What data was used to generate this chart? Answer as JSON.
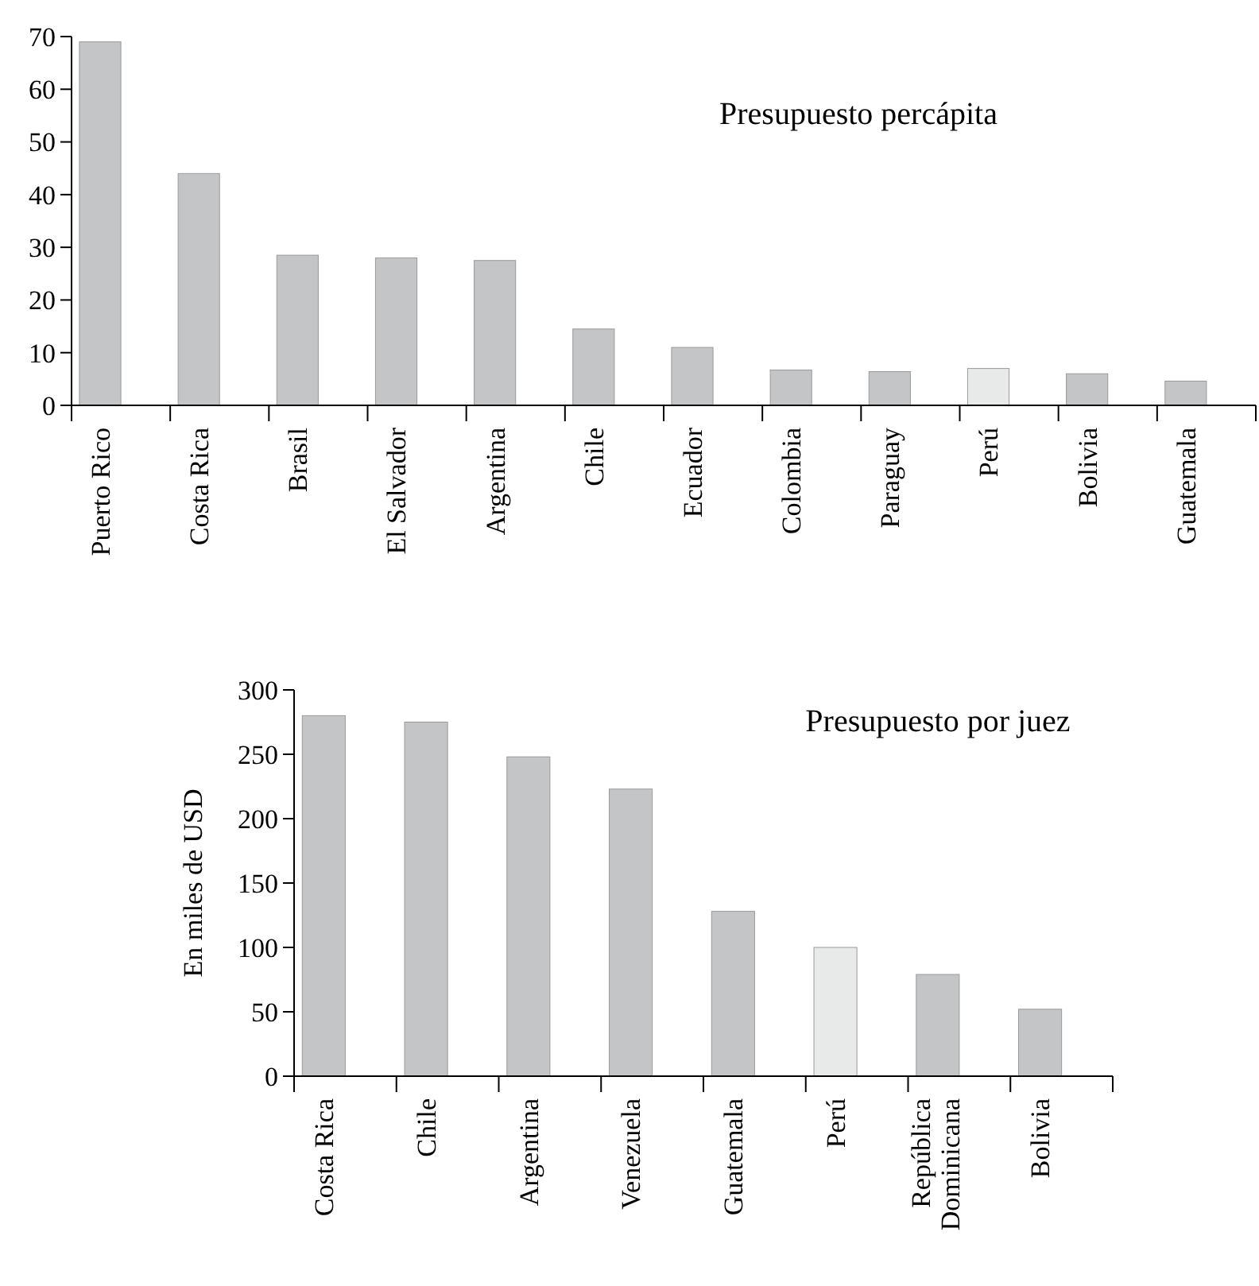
{
  "chart_data": [
    {
      "type": "bar",
      "title": "Presupuesto percápita",
      "categories": [
        "Puerto Rico",
        "Costa Rica",
        "Brasil",
        "El Salvador",
        "Argentina",
        "Chile",
        "Ecuador",
        "Colombia",
        "Paraguay",
        "Perú",
        "Bolivia",
        "Guatemala"
      ],
      "values": [
        69,
        44,
        28.5,
        28,
        27.5,
        14.5,
        11,
        6.7,
        6.4,
        7,
        6,
        4.6
      ],
      "colors": [
        "#c4c5c7",
        "#c4c5c7",
        "#c4c5c7",
        "#c4c5c7",
        "#c4c5c7",
        "#c4c5c7",
        "#c4c5c7",
        "#c4c5c7",
        "#c4c5c7",
        "#e8e9e9",
        "#c4c5c7",
        "#c4c5c7"
      ],
      "ylim": [
        0,
        70
      ],
      "yticks": [
        0,
        10,
        20,
        30,
        40,
        50,
        60,
        70
      ]
    },
    {
      "type": "bar",
      "title": "Presupuesto por juez",
      "ylabel": "En miles de USD",
      "categories": [
        "Costa Rica",
        "Chile",
        "Argentina",
        "Venezuela",
        "Guatemala",
        "Perú",
        "República Dominicana",
        "Bolivia"
      ],
      "values": [
        280,
        275,
        248,
        223,
        128,
        100,
        79,
        52
      ],
      "colors": [
        "#c4c5c7",
        "#c4c5c7",
        "#c4c5c7",
        "#c4c5c7",
        "#c4c5c7",
        "#e8e9e9",
        "#c4c5c7",
        "#c4c5c7"
      ],
      "ylim": [
        0,
        300
      ],
      "yticks": [
        0,
        50,
        100,
        150,
        200,
        250,
        300
      ]
    }
  ]
}
